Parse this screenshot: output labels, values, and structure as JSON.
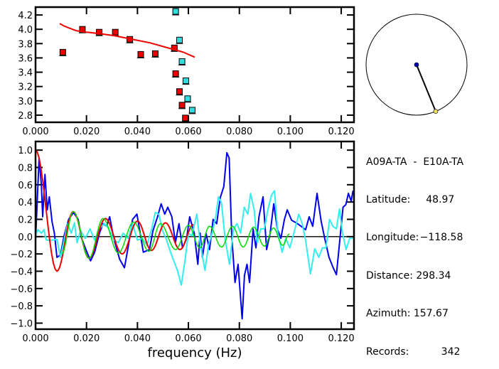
{
  "info": {
    "pair": "A09A-TA  -  E10A-TA",
    "latitude_label": "Latitude:",
    "latitude": "48.97",
    "longitude_label": "Longitude:",
    "longitude": "−118.58",
    "distance_label": "Distance:",
    "distance": "298.34",
    "azimuth_label": "Azimuth:",
    "azimuth": "157.67",
    "records_label": "Records:",
    "records": "342"
  },
  "map": {
    "azimuth_deg": 157.67,
    "station_color": "#0000aa",
    "target_color": "#f0e060"
  },
  "chart_data": [
    {
      "type": "scatter",
      "title": "",
      "xlabel": "",
      "ylabel": "",
      "xlim": [
        0,
        0.125
      ],
      "ylim": [
        2.7,
        4.31
      ],
      "xticks": [
        0,
        0.02,
        0.04,
        0.06,
        0.08,
        0.1,
        0.12
      ],
      "xtick_labels": [
        "0.000",
        "0.020",
        "0.040",
        "0.060",
        "0.080",
        "0.100",
        "0.120"
      ],
      "yticks": [
        2.8,
        3.0,
        3.2,
        3.4,
        3.6,
        3.8,
        4.0,
        4.2
      ],
      "ytick_labels": [
        "2.8",
        "3.0",
        "3.2",
        "3.4",
        "3.6",
        "3.8",
        "4.0",
        "4.2"
      ],
      "series": [
        {
          "name": "red-points",
          "color": "#ee0000",
          "x": [
            0.0107,
            0.0184,
            0.025,
            0.0313,
            0.037,
            0.0413,
            0.047,
            0.0545,
            0.055,
            0.0565,
            0.0575,
            0.0588
          ],
          "y": [
            3.68,
            4.0,
            3.96,
            3.96,
            3.86,
            3.65,
            3.66,
            3.74,
            3.38,
            3.13,
            2.94,
            2.76
          ]
        },
        {
          "name": "cyan-points",
          "color": "#33dddd",
          "x": [
            0.055,
            0.0565,
            0.0575,
            0.059,
            0.0597,
            0.0615
          ],
          "y": [
            4.25,
            3.85,
            3.55,
            3.28,
            3.03,
            2.87
          ]
        },
        {
          "name": "fit-curve",
          "type": "line",
          "color": "#ee0000",
          "x": [
            0.0095,
            0.011,
            0.013,
            0.016,
            0.02,
            0.025,
            0.031,
            0.038,
            0.045,
            0.052,
            0.058,
            0.0625
          ],
          "y": [
            4.08,
            4.05,
            4.02,
            3.98,
            3.96,
            3.94,
            3.91,
            3.86,
            3.81,
            3.74,
            3.68,
            3.61
          ]
        }
      ]
    },
    {
      "type": "line",
      "title": "",
      "xlabel": "frequency (Hz)",
      "ylabel": "",
      "xlim": [
        0,
        0.125
      ],
      "ylim": [
        -1.07,
        1.1
      ],
      "xticks": [
        0,
        0.02,
        0.04,
        0.06,
        0.08,
        0.1,
        0.12
      ],
      "xtick_labels": [
        "0.000",
        "0.020",
        "0.040",
        "0.060",
        "0.080",
        "0.100",
        "0.120"
      ],
      "yticks": [
        -1.0,
        -0.8,
        -0.6,
        -0.4,
        -0.2,
        0.0,
        0.2,
        0.4,
        0.6,
        0.8,
        1.0
      ],
      "ytick_labels": [
        "−1.0",
        "−0.8",
        "−0.6",
        "−0.4",
        "−0.2",
        "0.0",
        "0.2",
        "0.4",
        "0.6",
        "0.8",
        "1.0"
      ],
      "zero_line": true,
      "series": [
        {
          "name": "observed-real",
          "color": "#0000ee",
          "smooth": false,
          "x": [
            0,
            0.0014,
            0.0023,
            0.0028,
            0.0037,
            0.0046,
            0.0054,
            0.0065,
            0.0074,
            0.0084,
            0.0098,
            0.0112,
            0.013,
            0.0149,
            0.0167,
            0.0181,
            0.0195,
            0.0216,
            0.0232,
            0.0251,
            0.0265,
            0.0279,
            0.0291,
            0.0307,
            0.033,
            0.0349,
            0.0363,
            0.0381,
            0.0398,
            0.0409,
            0.0423,
            0.0447,
            0.0461,
            0.0479,
            0.0493,
            0.0507,
            0.0519,
            0.0535,
            0.0549,
            0.0563,
            0.0577,
            0.0593,
            0.0605,
            0.0623,
            0.0637,
            0.0646,
            0.0655,
            0.0669,
            0.0683,
            0.0697,
            0.0711,
            0.0725,
            0.0739,
            0.0751,
            0.076,
            0.077,
            0.0783,
            0.0795,
            0.0811,
            0.082,
            0.083,
            0.084,
            0.0854,
            0.0865,
            0.0877,
            0.0893,
            0.0907,
            0.0921,
            0.0935,
            0.0949,
            0.0963,
            0.0977,
            0.0988,
            0.1005,
            0.1023,
            0.1042,
            0.106,
            0.1074,
            0.1088,
            0.1105,
            0.1121,
            0.1135,
            0.1152,
            0.1167,
            0.1181,
            0.1195,
            0.1207,
            0.1218,
            0.1228,
            0.1239,
            0.1246
          ],
          "y": [
            -0.04,
            0.91,
            0.59,
            0.23,
            0.72,
            0.31,
            0.46,
            0.17,
            0.04,
            -0.24,
            -0.21,
            0.01,
            0.2,
            0.28,
            0.2,
            -0.02,
            -0.13,
            -0.28,
            -0.18,
            0.04,
            0.15,
            0.12,
            0.23,
            -0.02,
            -0.26,
            -0.36,
            -0.13,
            0.2,
            0.26,
            0.07,
            -0.18,
            -0.15,
            0.07,
            0.23,
            0.38,
            0.26,
            0.34,
            0.23,
            -0.07,
            0.15,
            -0.13,
            -0.02,
            0.23,
            0.04,
            -0.32,
            0.04,
            -0.24,
            0.04,
            -0.15,
            0.2,
            0.15,
            0.45,
            0.58,
            0.97,
            0.91,
            0.01,
            -0.53,
            -0.32,
            -0.95,
            -0.45,
            -0.32,
            -0.53,
            0.09,
            -0.13,
            0.23,
            0.46,
            -0.15,
            0.04,
            0.38,
            0.09,
            -0.02,
            0.2,
            0.31,
            0.19,
            0.16,
            0.12,
            0.08,
            0.23,
            0.12,
            0.5,
            0.18,
            -0.02,
            -0.24,
            -0.35,
            -0.44,
            -0.02,
            0.34,
            0.37,
            0.5,
            0.41,
            0.53
          ]
        },
        {
          "name": "observed-imag",
          "color": "#33eeee",
          "smooth": false,
          "x": [
            0,
            0.0009,
            0.0023,
            0.0033,
            0.0042,
            0.0065,
            0.0084,
            0.0098,
            0.0112,
            0.0126,
            0.014,
            0.0153,
            0.0163,
            0.0177,
            0.0195,
            0.0214,
            0.0232,
            0.0251,
            0.027,
            0.0288,
            0.0307,
            0.0325,
            0.0344,
            0.0363,
            0.0381,
            0.04,
            0.0419,
            0.0437,
            0.0456,
            0.047,
            0.0484,
            0.0498,
            0.0512,
            0.053,
            0.0544,
            0.0558,
            0.0572,
            0.0586,
            0.06,
            0.0614,
            0.0633,
            0.0646,
            0.0665,
            0.0679,
            0.0693,
            0.0707,
            0.0718,
            0.073,
            0.0744,
            0.0761,
            0.0777,
            0.0791,
            0.0805,
            0.0819,
            0.0833,
            0.0844,
            0.0858,
            0.087,
            0.0884,
            0.0898,
            0.0912,
            0.0926,
            0.0938,
            0.0951,
            0.0968,
            0.0982,
            0.0998,
            0.1014,
            0.1033,
            0.1047,
            0.106,
            0.1079,
            0.1096,
            0.1112,
            0.1126,
            0.114,
            0.1154,
            0.1167,
            0.1181,
            0.1193,
            0.1205,
            0.1219,
            0.1233,
            0.1246
          ],
          "y": [
            0.01,
            0.08,
            0.04,
            0.08,
            -0.04,
            -0.04,
            -0.03,
            -0.24,
            -0.04,
            0.15,
            0.04,
            0.16,
            -0.07,
            0.07,
            -0.02,
            0.09,
            -0.04,
            0.09,
            0.15,
            0.09,
            -0.04,
            -0.07,
            0.04,
            -0.02,
            0.15,
            -0.04,
            -0.02,
            -0.1,
            0.09,
            0.28,
            0.26,
            0.07,
            -0.02,
            -0.18,
            -0.29,
            -0.4,
            -0.56,
            -0.29,
            0.04,
            0.01,
            0.26,
            -0.07,
            -0.39,
            -0.1,
            0.04,
            0.23,
            0.46,
            0.39,
            -0.02,
            -0.32,
            0.09,
            0.15,
            0.04,
            0.34,
            0.26,
            0.5,
            0.31,
            -0.07,
            0.09,
            0.09,
            0.31,
            0.48,
            0.53,
            0.04,
            -0.18,
            -0.02,
            -0.13,
            0.04,
            0.26,
            0.15,
            -0.04,
            -0.43,
            -0.14,
            -0.24,
            -0.13,
            -0.13,
            0.2,
            0.12,
            0.09,
            0.32,
            0.04,
            -0.15,
            -0.02,
            -0.02
          ]
        },
        {
          "name": "model-fit",
          "color": "#ee0000",
          "smooth": true,
          "x": [
            0,
            0.0084,
            0.0148,
            0.021,
            0.0274,
            0.034,
            0.04,
            0.0455,
            0.051,
            0.0567,
            0.062
          ],
          "y": [
            1.0,
            -0.4,
            0.29,
            -0.25,
            0.21,
            -0.2,
            0.18,
            -0.16,
            0.16,
            -0.15,
            0.14
          ]
        },
        {
          "name": "model-alt",
          "color": "#00dd00",
          "smooth": true,
          "x": [
            0.0103,
            0.0148,
            0.021,
            0.0265,
            0.0325,
            0.0385,
            0.0445,
            0.049,
            0.055,
            0.06,
            0.0645,
            0.0683,
            0.073,
            0.0773,
            0.0815,
            0.0856,
            0.0898,
            0.0934,
            0.097,
            0.0996
          ],
          "y": [
            -0.2,
            0.29,
            -0.25,
            0.21,
            -0.19,
            0.17,
            -0.17,
            0.15,
            -0.15,
            0.13,
            -0.13,
            0.12,
            -0.12,
            0.12,
            -0.12,
            0.11,
            -0.11,
            0.1,
            -0.1,
            0.03
          ]
        }
      ]
    }
  ]
}
